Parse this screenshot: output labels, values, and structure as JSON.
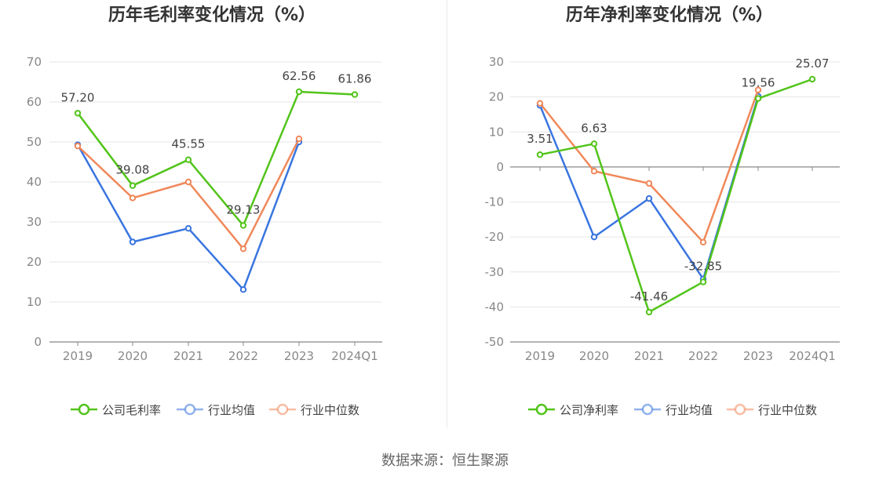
{
  "source_text": "数据来源：恒生聚源",
  "chart_data": [
    {
      "type": "line",
      "title": "历年毛利率变化情况（%）",
      "categories": [
        "2019",
        "2020",
        "2021",
        "2022",
        "2023",
        "2024Q1"
      ],
      "ylim": [
        0,
        70
      ],
      "yticks": [
        0,
        10,
        20,
        30,
        40,
        50,
        60,
        70
      ],
      "grid": true,
      "legend_position": "bottom",
      "series": [
        {
          "name": "公司毛利率",
          "color": "#52c41a",
          "values": [
            57.2,
            39.08,
            45.55,
            29.13,
            62.56,
            61.86
          ],
          "labels": [
            "57.20",
            "39.08",
            "45.55",
            "29.13",
            "62.56",
            "61.86"
          ]
        },
        {
          "name": "行业均值",
          "color": "#3a75e0",
          "values": [
            49.3,
            25.0,
            28.4,
            13.1,
            50.0,
            null
          ]
        },
        {
          "name": "行业中位数",
          "color": "#f0885a",
          "values": [
            49.0,
            36.0,
            40.0,
            23.3,
            50.8,
            null
          ]
        }
      ]
    },
    {
      "type": "line",
      "title": "历年净利率变化情况（%）",
      "categories": [
        "2019",
        "2020",
        "2021",
        "2022",
        "2023",
        "2024Q1"
      ],
      "ylim": [
        -50,
        30
      ],
      "yticks": [
        -50,
        -40,
        -30,
        -20,
        -10,
        0,
        10,
        20,
        30
      ],
      "grid": true,
      "legend_position": "bottom",
      "series": [
        {
          "name": "公司净利率",
          "color": "#52c41a",
          "values": [
            3.51,
            6.63,
            -41.46,
            -32.85,
            19.56,
            25.07
          ],
          "labels": [
            "3.51",
            "6.63",
            "-41.46",
            "-32.85",
            "19.56",
            "25.07"
          ]
        },
        {
          "name": "行业均值",
          "color": "#3a75e0",
          "values": [
            17.6,
            -20.0,
            -9.0,
            -32.0,
            20.2,
            null
          ]
        },
        {
          "name": "行业中位数",
          "color": "#f0885a",
          "values": [
            18.2,
            -1.2,
            -4.7,
            -21.5,
            22.0,
            null
          ]
        }
      ]
    }
  ]
}
